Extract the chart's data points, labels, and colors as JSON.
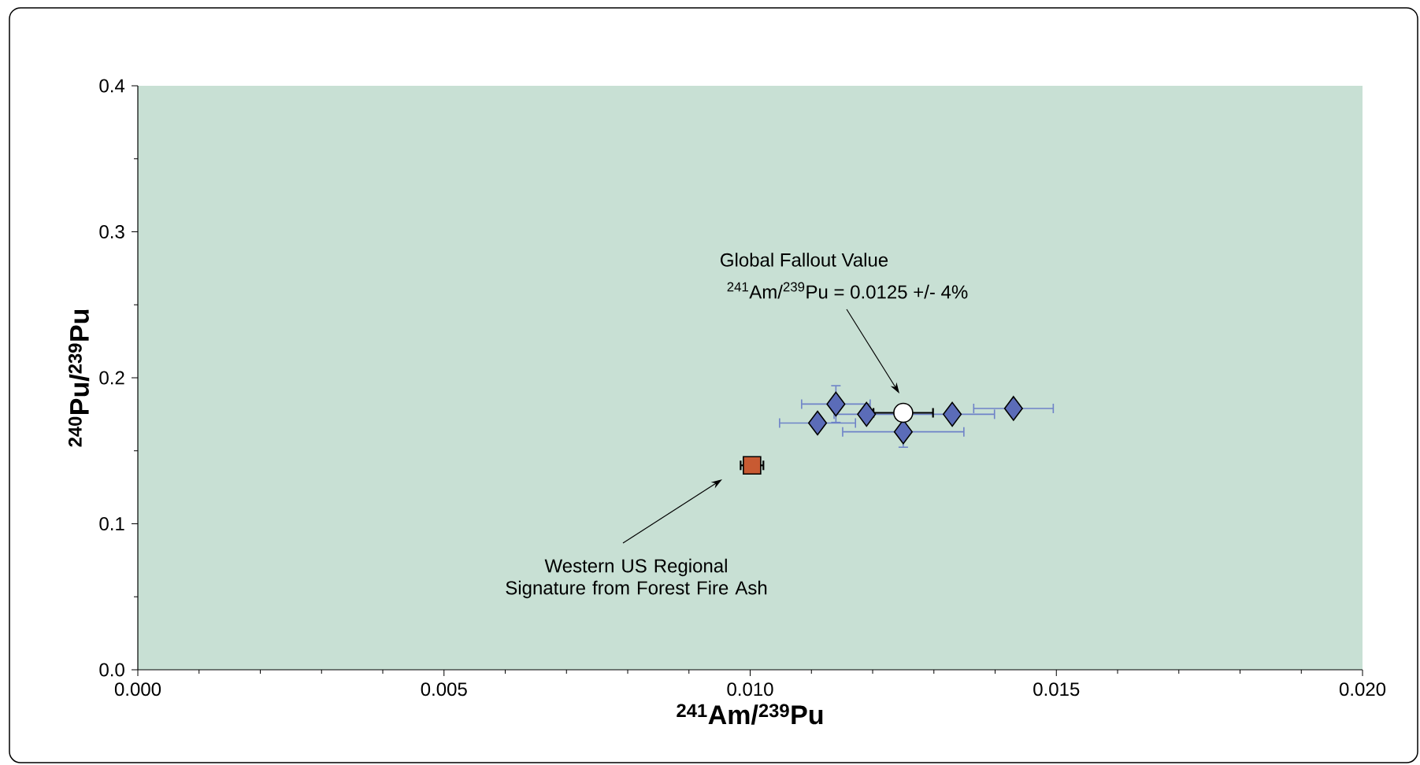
{
  "chart_data": {
    "type": "scatter",
    "xlabel": "$^{241}$Am/$^{239}$Pu",
    "ylabel": "$^{240}$Pu/$^{239}$Pu",
    "xlim": [
      0,
      0.02
    ],
    "ylim": [
      0,
      0.4
    ],
    "xticks": [
      {
        "value": 0,
        "label": "0.000"
      },
      {
        "value": 0.005,
        "label": "0.005"
      },
      {
        "value": 0.01,
        "label": "0.010"
      },
      {
        "value": 0.015,
        "label": "0.015"
      },
      {
        "value": 0.02,
        "label": "0.020"
      }
    ],
    "yticks": [
      {
        "value": 0,
        "label": "0.0"
      },
      {
        "value": 0.1,
        "label": "0.1"
      },
      {
        "value": 0.2,
        "label": "0.2"
      },
      {
        "value": 0.3,
        "label": "0.3"
      },
      {
        "value": 0.4,
        "label": "0.4"
      }
    ],
    "grid": false,
    "series": [
      {
        "color": "#5b6cb8",
        "marker": "diamond",
        "x": [
          0.0114,
          0.0111,
          0.0119,
          0.0133,
          0.0125,
          0.0143
        ],
        "values": [
          0.182,
          0.169,
          0.175,
          0.175,
          0.163,
          0.179
        ],
        "xerrors": [
          0.00057,
          0.00063,
          0.00054,
          0.0007,
          0.001,
          0.00066
        ],
        "errors": [
          0.013,
          null,
          null,
          null,
          0.011,
          null
        ]
      },
      {
        "color": "#c85a32",
        "marker": "square",
        "x": [
          0.01003
        ],
        "values": [
          0.14
        ],
        "xerrors": [
          0.0002
        ]
      },
      {
        "color": "#ffffff",
        "marker": "circle",
        "x": [
          0.0125
        ],
        "values": [
          0.176
        ],
        "xerrors": [
          0.0005
        ]
      }
    ],
    "annotations": [
      "Global Fallout Value",
      "$^{241}$Am/$^{239}$Pu = 0.0125 +/- 4%",
      "Western US Regional Signature from Forest Fire Ash"
    ]
  }
}
